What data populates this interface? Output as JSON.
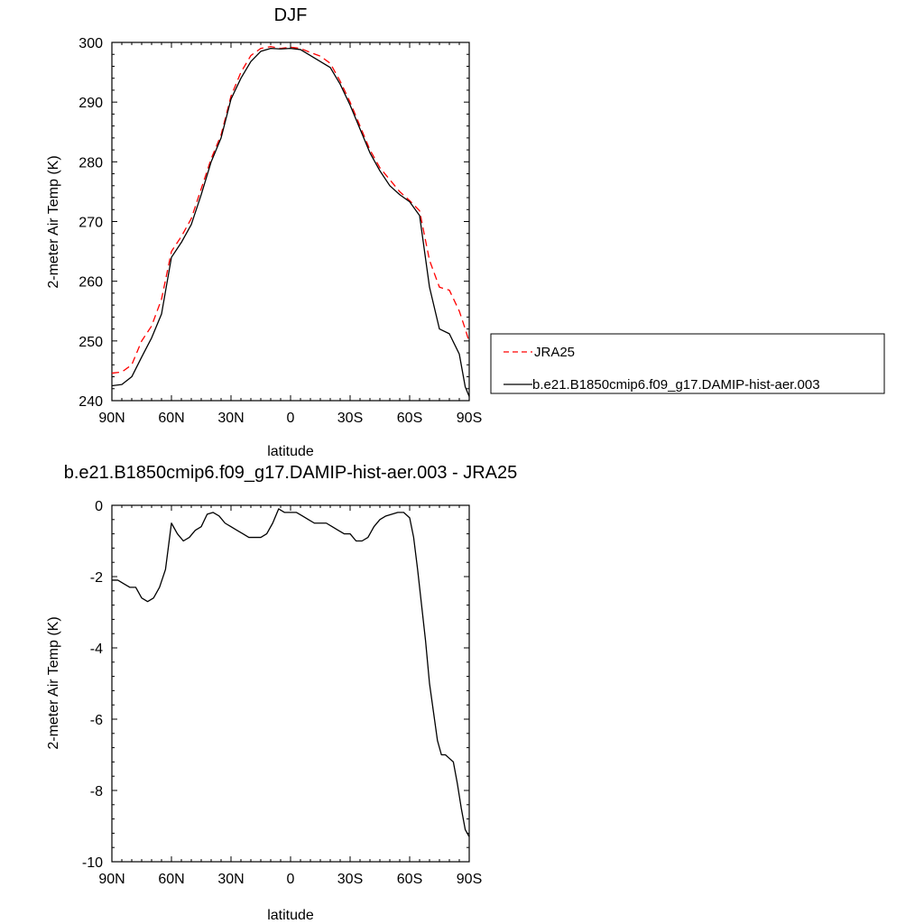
{
  "chart_data": [
    {
      "type": "line",
      "title": "DJF",
      "xlabel": "latitude",
      "ylabel": "2-meter Air Temp (K)",
      "x_tick_values": [
        90,
        60,
        30,
        0,
        -30,
        -60,
        -90
      ],
      "x_tick_labels": [
        "90N",
        "60N",
        "30N",
        "0",
        "30S",
        "60S",
        "90S"
      ],
      "xlim": [
        90,
        -90
      ],
      "ylim": [
        240,
        300
      ],
      "y_ticks": [
        240,
        250,
        260,
        270,
        280,
        290,
        300
      ],
      "legend_position": "right",
      "series": [
        {
          "name": "JRA25",
          "color": "#ff0000",
          "dash": "dashed",
          "x": [
            90,
            85,
            80,
            75,
            70,
            65,
            60,
            55,
            50,
            45,
            40,
            35,
            30,
            25,
            20,
            15,
            10,
            5,
            0,
            -5,
            -10,
            -15,
            -20,
            -25,
            -30,
            -35,
            -40,
            -45,
            -50,
            -55,
            -60,
            -65,
            -70,
            -75,
            -80,
            -85,
            -88,
            -90
          ],
          "values": [
            244.6,
            244.8,
            246.0,
            250.0,
            252.5,
            257.0,
            265.0,
            267.5,
            270.5,
            275.5,
            280.5,
            284.5,
            291.0,
            295.0,
            297.8,
            299.0,
            299.3,
            299.0,
            299.2,
            299.0,
            298.3,
            297.7,
            296.5,
            293.5,
            290.0,
            286.0,
            282.0,
            279.0,
            277.0,
            275.0,
            273.5,
            271.8,
            263.5,
            259.0,
            258.5,
            255.0,
            252.0,
            249.8
          ]
        },
        {
          "name": "b.e21.B1850cmip6.f09_g17.DAMIP-hist-aer.003",
          "color": "#000000",
          "dash": "solid",
          "x": [
            90,
            85,
            80,
            75,
            70,
            65,
            60,
            55,
            50,
            45,
            40,
            35,
            30,
            25,
            20,
            15,
            10,
            5,
            0,
            -5,
            -10,
            -15,
            -20,
            -25,
            -30,
            -35,
            -40,
            -45,
            -50,
            -55,
            -60,
            -65,
            -70,
            -75,
            -80,
            -85,
            -88,
            -90
          ],
          "values": [
            242.5,
            242.7,
            244.0,
            247.3,
            250.5,
            254.5,
            264.0,
            266.5,
            269.5,
            274.5,
            280.0,
            284.0,
            290.5,
            294.0,
            296.8,
            298.5,
            299.0,
            298.9,
            299.0,
            298.8,
            297.8,
            296.8,
            295.8,
            293.0,
            289.5,
            285.5,
            281.5,
            278.5,
            276.0,
            274.5,
            273.3,
            271.0,
            259.0,
            252.0,
            251.2,
            247.8,
            242.3,
            240.7
          ]
        }
      ]
    },
    {
      "type": "line",
      "title": "b.e21.B1850cmip6.f09_g17.DAMIP-hist-aer.003 - JRA25",
      "xlabel": "latitude",
      "ylabel": "2-meter Air Temp (K)",
      "x_tick_values": [
        90,
        60,
        30,
        0,
        -30,
        -60,
        -90
      ],
      "x_tick_labels": [
        "90N",
        "60N",
        "30N",
        "0",
        "30S",
        "60S",
        "90S"
      ],
      "xlim": [
        90,
        -90
      ],
      "ylim": [
        -10,
        0
      ],
      "y_ticks": [
        -10,
        -8,
        -6,
        -4,
        -2,
        0
      ],
      "series": [
        {
          "color": "#000000",
          "dash": "solid",
          "x": [
            90,
            87,
            84,
            81,
            78,
            75,
            72,
            69,
            66,
            63,
            60,
            57,
            54,
            51,
            48,
            45,
            42,
            39,
            36,
            33,
            30,
            27,
            24,
            21,
            18,
            15,
            12,
            9,
            6,
            3,
            0,
            -3,
            -6,
            -9,
            -12,
            -15,
            -18,
            -21,
            -24,
            -27,
            -30,
            -33,
            -36,
            -39,
            -42,
            -45,
            -48,
            -51,
            -54,
            -57,
            -60,
            -62,
            -64,
            -66,
            -68,
            -70,
            -72,
            -74,
            -76,
            -78,
            -80,
            -82,
            -84,
            -86,
            -88,
            -90
          ],
          "values": [
            -2.1,
            -2.1,
            -2.2,
            -2.3,
            -2.3,
            -2.6,
            -2.7,
            -2.6,
            -2.3,
            -1.8,
            -0.5,
            -0.8,
            -1.0,
            -0.9,
            -0.7,
            -0.6,
            -0.25,
            -0.2,
            -0.3,
            -0.5,
            -0.6,
            -0.7,
            -0.8,
            -0.9,
            -0.9,
            -0.9,
            -0.8,
            -0.5,
            -0.1,
            -0.2,
            -0.2,
            -0.2,
            -0.3,
            -0.4,
            -0.5,
            -0.5,
            -0.5,
            -0.6,
            -0.7,
            -0.8,
            -0.8,
            -1.0,
            -1.0,
            -0.9,
            -0.6,
            -0.4,
            -0.3,
            -0.25,
            -0.2,
            -0.2,
            -0.35,
            -0.9,
            -1.8,
            -2.8,
            -3.8,
            -5.0,
            -5.8,
            -6.6,
            -7.0,
            -7.0,
            -7.1,
            -7.2,
            -7.8,
            -8.5,
            -9.1,
            -9.3
          ]
        }
      ]
    }
  ]
}
